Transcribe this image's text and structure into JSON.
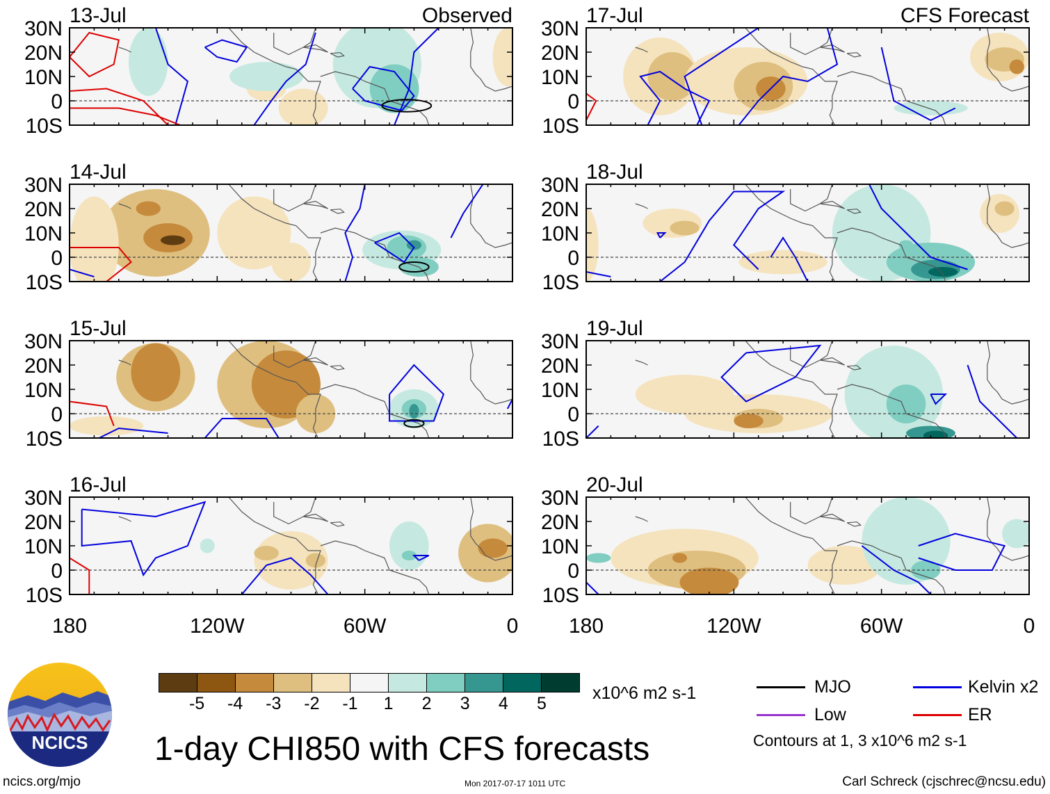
{
  "title": "1-day CHI850 with CFS forecasts",
  "panel_labels": {
    "observed": "Observed",
    "forecast": "CFS Forecast"
  },
  "panels": [
    {
      "date": "13-Jul",
      "column": "observed",
      "row": 0
    },
    {
      "date": "14-Jul",
      "column": "observed",
      "row": 1
    },
    {
      "date": "15-Jul",
      "column": "observed",
      "row": 2
    },
    {
      "date": "16-Jul",
      "column": "observed",
      "row": 3
    },
    {
      "date": "17-Jul",
      "column": "forecast",
      "row": 0
    },
    {
      "date": "18-Jul",
      "column": "forecast",
      "row": 1
    },
    {
      "date": "19-Jul",
      "column": "forecast",
      "row": 2
    },
    {
      "date": "20-Jul",
      "column": "forecast",
      "row": 3
    }
  ],
  "lat_labels": [
    "30N",
    "20N",
    "10N",
    "0",
    "10S"
  ],
  "lon_labels": [
    "180",
    "120W",
    "60W",
    "0"
  ],
  "colorbar": {
    "colors": [
      "#5e3c11",
      "#8d5611",
      "#c58a3c",
      "#dfbf7f",
      "#f5e3be",
      "#f5f5f5",
      "#c5e9e0",
      "#80cdc1",
      "#35978f",
      "#01665e",
      "#003c30"
    ],
    "ticks": [
      "-5",
      "-4",
      "-3",
      "-2",
      "-1",
      "1",
      "2",
      "3",
      "4",
      "5"
    ],
    "units": "x10^6 m2 s-1"
  },
  "contour_legend": {
    "items": [
      {
        "label": "MJO",
        "color": "#000000"
      },
      {
        "label": "Kelvin x2",
        "color": "#0000dd"
      },
      {
        "label": "Low",
        "color": "#9933cc"
      },
      {
        "label": "ER",
        "color": "#dd0000"
      }
    ],
    "note": "Contours at 1, 3 x10^6 m2 s-1"
  },
  "logo": {
    "text": "NCICS"
  },
  "footer": {
    "left": "ncics.org/mjo",
    "middle": "Mon 2017-07-17 1011 UTC",
    "right": "Carl Schreck (cjschrec@ncsu.edu)"
  }
}
